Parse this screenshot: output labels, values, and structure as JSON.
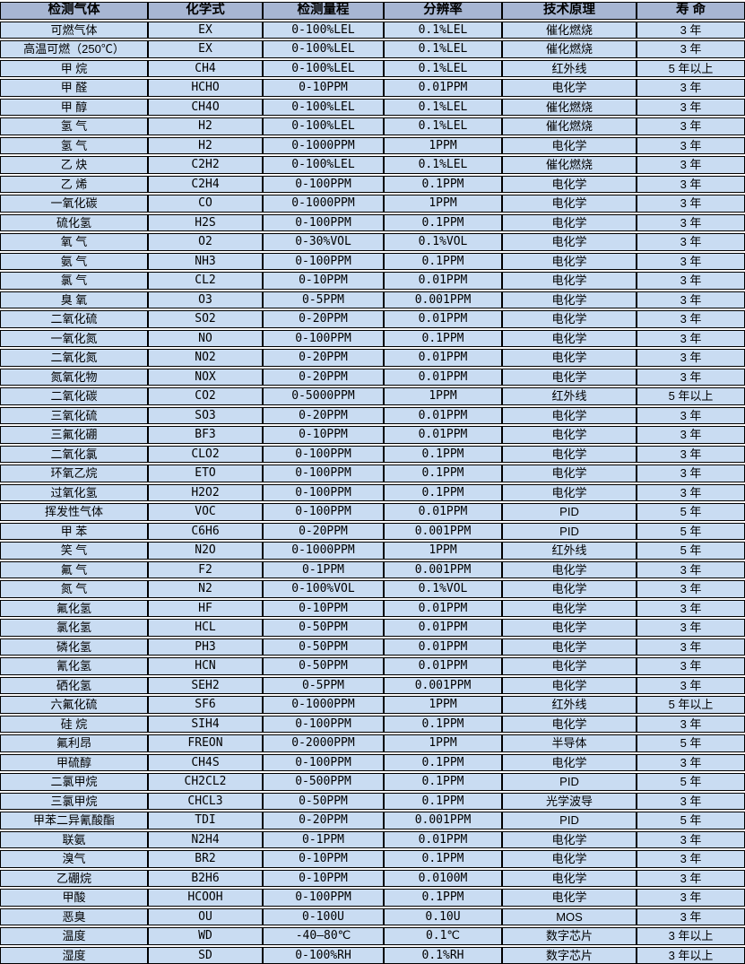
{
  "colors": {
    "header_bg": "#a7b6d3",
    "row_bg": "#c9dcf2",
    "border": "#000000",
    "gap": "#ffffff",
    "text": "#000000"
  },
  "table": {
    "headers": [
      "检测气体",
      "化学式",
      "检测量程",
      "分辨率",
      "技术原理",
      "寿 命"
    ],
    "rows": [
      [
        "可燃气体",
        "EX",
        "0-100%LEL",
        "0.1%LEL",
        "催化燃烧",
        "3 年"
      ],
      [
        "高温可燃（250℃）",
        "EX",
        "0-100%LEL",
        "0.1%LEL",
        "催化燃烧",
        "3 年"
      ],
      [
        "甲 烷",
        "CH4",
        "0-100%LEL",
        "0.1%LEL",
        "红外线",
        "5 年以上"
      ],
      [
        "甲 醛",
        "HCHO",
        "0-10PPM",
        "0.01PPM",
        "电化学",
        "3 年"
      ],
      [
        "甲 醇",
        "CH4O",
        "0-100%LEL",
        "0.1%LEL",
        "催化燃烧",
        "3 年"
      ],
      [
        "氢 气",
        "H2",
        "0-100%LEL",
        "0.1%LEL",
        "催化燃烧",
        "3 年"
      ],
      [
        "氢 气",
        "H2",
        "0-1000PPM",
        "1PPM",
        "电化学",
        "3 年"
      ],
      [
        "乙 炔",
        "C2H2",
        "0-100%LEL",
        "0.1%LEL",
        "催化燃烧",
        "3 年"
      ],
      [
        "乙 烯",
        "C2H4",
        "0-100PPM",
        "0.1PPM",
        "电化学",
        "3 年"
      ],
      [
        "一氧化碳",
        "CO",
        "0-1000PPM",
        "1PPM",
        "电化学",
        "3 年"
      ],
      [
        "硫化氢",
        "H2S",
        "0-100PPM",
        "0.1PPM",
        "电化学",
        "3 年"
      ],
      [
        "氧 气",
        "O2",
        "0-30%VOL",
        "0.1%VOL",
        "电化学",
        "3 年"
      ],
      [
        "氨 气",
        "NH3",
        "0-100PPM",
        "0.1PPM",
        "电化学",
        "3 年"
      ],
      [
        "氯 气",
        "CL2",
        "0-10PPM",
        "0.01PPM",
        "电化学",
        "3 年"
      ],
      [
        "臭 氧",
        "O3",
        "0-5PPM",
        "0.001PPM",
        "电化学",
        "3 年"
      ],
      [
        "二氧化硫",
        "SO2",
        "0-20PPM",
        "0.01PPM",
        "电化学",
        "3 年"
      ],
      [
        "一氧化氮",
        "NO",
        "0-100PPM",
        "0.1PPM",
        "电化学",
        "3 年"
      ],
      [
        "二氧化氮",
        "NO2",
        "0-20PPM",
        "0.01PPM",
        "电化学",
        "3 年"
      ],
      [
        "氮氧化物",
        "NOX",
        "0-20PPM",
        "0.01PPM",
        "电化学",
        "3 年"
      ],
      [
        "二氧化碳",
        "CO2",
        "0-5000PPM",
        "1PPM",
        "红外线",
        "5 年以上"
      ],
      [
        "三氧化硫",
        "SO3",
        "0-20PPM",
        "0.01PPM",
        "电化学",
        "3 年"
      ],
      [
        "三氟化硼",
        "BF3",
        "0-10PPM",
        "0.01PPM",
        "电化学",
        "3 年"
      ],
      [
        "二氧化氯",
        "CLO2",
        "0-100PPM",
        "0.1PPM",
        "电化学",
        "3 年"
      ],
      [
        "环氧乙烷",
        "ETO",
        "0-100PPM",
        "0.1PPM",
        "电化学",
        "3 年"
      ],
      [
        "过氧化氢",
        "H2O2",
        "0-100PPM",
        "0.1PPM",
        "电化学",
        "3 年"
      ],
      [
        "挥发性气体",
        "VOC",
        "0-100PPM",
        "0.01PPM",
        "PID",
        "5 年"
      ],
      [
        "甲 苯",
        "C6H6",
        "0-20PPM",
        "0.001PPM",
        "PID",
        "5 年"
      ],
      [
        "笑 气",
        "N2O",
        "0-1000PPM",
        "1PPM",
        "红外线",
        "5 年"
      ],
      [
        "氟 气",
        "F2",
        "0-1PPM",
        "0.001PPM",
        "电化学",
        "3 年"
      ],
      [
        "氮 气",
        "N2",
        "0-100%VOL",
        "0.1%VOL",
        "电化学",
        "3 年"
      ],
      [
        "氟化氢",
        "HF",
        "0-10PPM",
        "0.01PPM",
        "电化学",
        "3 年"
      ],
      [
        "氯化氢",
        "HCL",
        "0-50PPM",
        "0.01PPM",
        "电化学",
        "3 年"
      ],
      [
        "磷化氢",
        "PH3",
        "0-50PPM",
        "0.01PPM",
        "电化学",
        "3 年"
      ],
      [
        "氰化氢",
        "HCN",
        "0-50PPM",
        "0.01PPM",
        "电化学",
        "3 年"
      ],
      [
        "硒化氢",
        "SEH2",
        "0-5PPM",
        "0.001PPM",
        "电化学",
        "3 年"
      ],
      [
        "六氟化硫",
        "SF6",
        "0-1000PPM",
        "1PPM",
        "红外线",
        "5 年以上"
      ],
      [
        "硅 烷",
        "SIH4",
        "0-100PPM",
        "0.1PPM",
        "电化学",
        "3 年"
      ],
      [
        "氟利昂",
        "FREON",
        "0-2000PPM",
        "1PPM",
        "半导体",
        "5 年"
      ],
      [
        "甲硫醇",
        "CH4S",
        "0-100PPM",
        "0.1PPM",
        "电化学",
        "3 年"
      ],
      [
        "二氯甲烷",
        "CH2CL2",
        "0-500PPM",
        "0.1PPM",
        "PID",
        "5 年"
      ],
      [
        "三氯甲烷",
        "CHCL3",
        "0-50PPM",
        "0.1PPM",
        "光学波导",
        "3 年"
      ],
      [
        "甲苯二异氰酸酯",
        "TDI",
        "0-20PPM",
        "0.001PPM",
        "PID",
        "5 年"
      ],
      [
        "联氨",
        "N2H4",
        "0-1PPM",
        "0.01PPM",
        "电化学",
        "3 年"
      ],
      [
        "溴气",
        "BR2",
        "0-10PPM",
        "0.1PPM",
        "电化学",
        "3 年"
      ],
      [
        "乙硼烷",
        "B2H6",
        "0-10PPM",
        "0.0100M",
        "电化学",
        "3 年"
      ],
      [
        "甲酸",
        "HCOOH",
        "0-100PPM",
        "0.1PPM",
        "电化学",
        "3 年"
      ],
      [
        "恶臭",
        "OU",
        "0-100U",
        "0.10U",
        "MOS",
        "3 年"
      ],
      [
        "温度",
        "WD",
        "-40—80℃",
        "0.1℃",
        "数字芯片",
        "3 年以上"
      ],
      [
        "湿度",
        "SD",
        "0-100%RH",
        "0.1%RH",
        "数字芯片",
        "3 年以上"
      ]
    ]
  }
}
